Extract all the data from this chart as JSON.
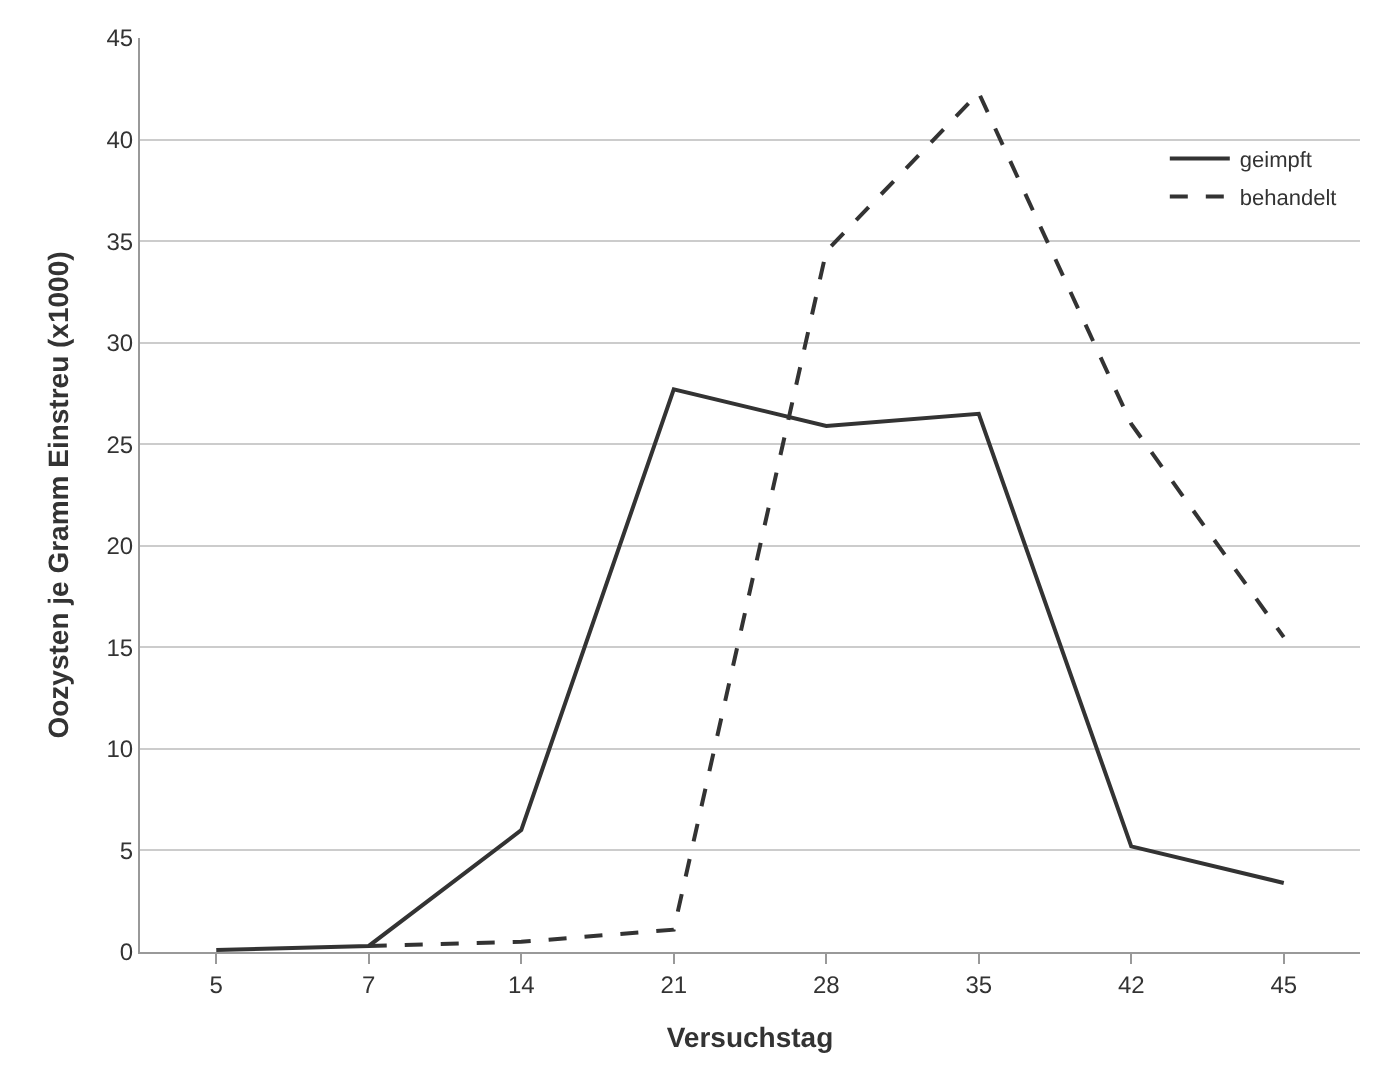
{
  "chart_data": {
    "type": "line",
    "xlabel": "Versuchstag",
    "ylabel": "Oozysten je Gramm Einstreu (x1000)",
    "categories": [
      "5",
      "7",
      "14",
      "21",
      "28",
      "35",
      "42",
      "45"
    ],
    "series": [
      {
        "name": "geimpft",
        "color": "#333333",
        "line_style": "solid",
        "values": [
          0.1,
          0.3,
          6,
          27.7,
          25.9,
          26.5,
          5.2,
          3.4
        ]
      },
      {
        "name": "behandelt",
        "color": "#333333",
        "line_style": "dashed",
        "values": [
          null,
          0.3,
          0.5,
          1.1,
          34.5,
          42.3,
          26,
          15.5
        ]
      }
    ],
    "ylim": [
      0,
      45
    ],
    "yticks": [
      0,
      5,
      10,
      15,
      20,
      25,
      30,
      35,
      40,
      45
    ],
    "grid": "y",
    "legend": "top right",
    "marker": "none"
  }
}
